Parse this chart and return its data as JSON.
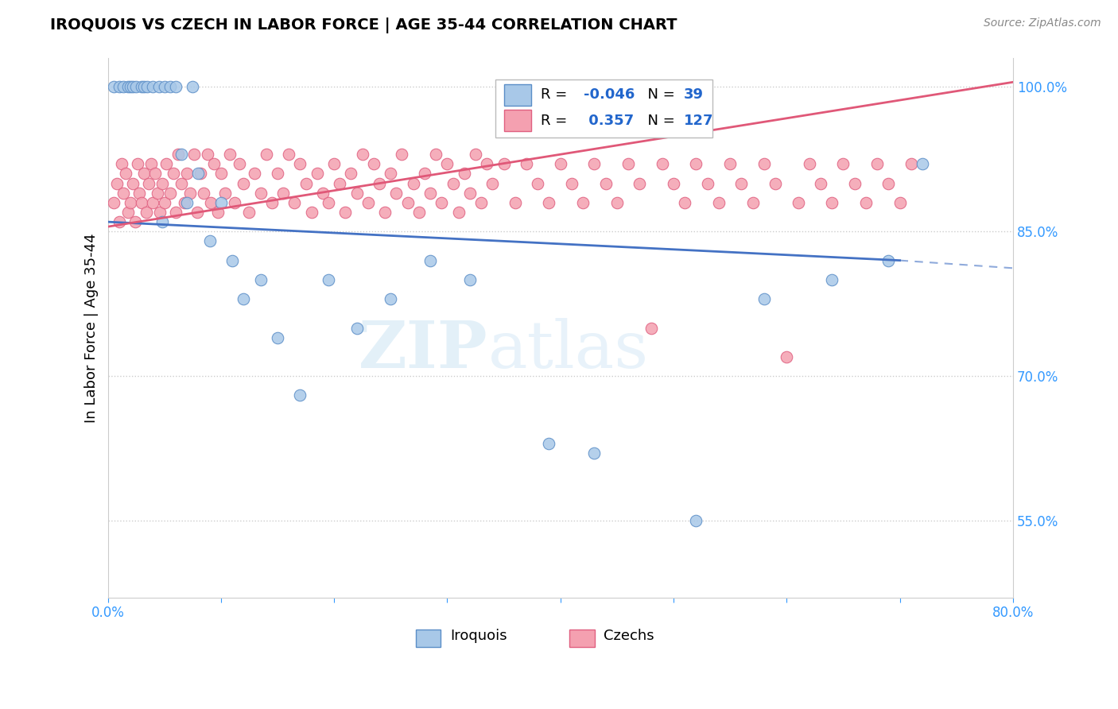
{
  "title": "IROQUOIS VS CZECH IN LABOR FORCE | AGE 35-44 CORRELATION CHART",
  "source": "Source: ZipAtlas.com",
  "ylabel": "In Labor Force | Age 35-44",
  "xlim": [
    0.0,
    0.8
  ],
  "ylim": [
    0.47,
    1.03
  ],
  "xtick_positions": [
    0.0,
    0.1,
    0.2,
    0.3,
    0.4,
    0.5,
    0.6,
    0.7,
    0.8
  ],
  "xticklabels": [
    "0.0%",
    "",
    "",
    "",
    "",
    "",
    "",
    "",
    "80.0%"
  ],
  "right_yticks": [
    0.55,
    0.7,
    0.85,
    1.0
  ],
  "right_yticklabels": [
    "55.0%",
    "70.0%",
    "85.0%",
    "100.0%"
  ],
  "blue_fill": "#a8c8e8",
  "blue_edge": "#5b8ec7",
  "pink_fill": "#f4a0b0",
  "pink_edge": "#e06080",
  "blue_line_color": "#4472c4",
  "pink_line_color": "#e05878",
  "watermark": "ZIPatlas",
  "R_iro": -0.046,
  "N_iro": 39,
  "R_cze": 0.357,
  "N_cze": 127,
  "iroquois_x": [
    0.005,
    0.01,
    0.014,
    0.018,
    0.02,
    0.022,
    0.025,
    0.03,
    0.032,
    0.035,
    0.04,
    0.045,
    0.048,
    0.05,
    0.055,
    0.06,
    0.065,
    0.07,
    0.075,
    0.08,
    0.09,
    0.1,
    0.11,
    0.12,
    0.135,
    0.15,
    0.17,
    0.195,
    0.22,
    0.25,
    0.285,
    0.32,
    0.39,
    0.43,
    0.52,
    0.58,
    0.64,
    0.69,
    0.72
  ],
  "iroquois_y": [
    1.0,
    1.0,
    1.0,
    1.0,
    1.0,
    1.0,
    1.0,
    1.0,
    1.0,
    1.0,
    1.0,
    1.0,
    0.86,
    1.0,
    1.0,
    1.0,
    0.93,
    0.88,
    1.0,
    0.91,
    0.84,
    0.88,
    0.82,
    0.78,
    0.8,
    0.74,
    0.68,
    0.8,
    0.75,
    0.78,
    0.82,
    0.8,
    0.63,
    0.62,
    0.55,
    0.78,
    0.8,
    0.82,
    0.92
  ],
  "czech_x": [
    0.005,
    0.008,
    0.01,
    0.012,
    0.014,
    0.016,
    0.018,
    0.02,
    0.022,
    0.024,
    0.026,
    0.028,
    0.03,
    0.032,
    0.034,
    0.036,
    0.038,
    0.04,
    0.042,
    0.044,
    0.046,
    0.048,
    0.05,
    0.052,
    0.055,
    0.058,
    0.06,
    0.062,
    0.065,
    0.068,
    0.07,
    0.073,
    0.076,
    0.079,
    0.082,
    0.085,
    0.088,
    0.091,
    0.094,
    0.097,
    0.1,
    0.104,
    0.108,
    0.112,
    0.116,
    0.12,
    0.125,
    0.13,
    0.135,
    0.14,
    0.145,
    0.15,
    0.155,
    0.16,
    0.165,
    0.17,
    0.175,
    0.18,
    0.185,
    0.19,
    0.195,
    0.2,
    0.205,
    0.21,
    0.215,
    0.22,
    0.225,
    0.23,
    0.235,
    0.24,
    0.245,
    0.25,
    0.255,
    0.26,
    0.265,
    0.27,
    0.275,
    0.28,
    0.285,
    0.29,
    0.295,
    0.3,
    0.305,
    0.31,
    0.315,
    0.32,
    0.325,
    0.33,
    0.335,
    0.34,
    0.35,
    0.36,
    0.37,
    0.38,
    0.39,
    0.4,
    0.41,
    0.42,
    0.43,
    0.44,
    0.45,
    0.46,
    0.47,
    0.48,
    0.49,
    0.5,
    0.51,
    0.52,
    0.53,
    0.54,
    0.55,
    0.56,
    0.57,
    0.58,
    0.59,
    0.6,
    0.61,
    0.62,
    0.63,
    0.64,
    0.65,
    0.66,
    0.67,
    0.68,
    0.69,
    0.7,
    0.71
  ],
  "czech_y": [
    0.88,
    0.9,
    0.86,
    0.92,
    0.89,
    0.91,
    0.87,
    0.88,
    0.9,
    0.86,
    0.92,
    0.89,
    0.88,
    0.91,
    0.87,
    0.9,
    0.92,
    0.88,
    0.91,
    0.89,
    0.87,
    0.9,
    0.88,
    0.92,
    0.89,
    0.91,
    0.87,
    0.93,
    0.9,
    0.88,
    0.91,
    0.89,
    0.93,
    0.87,
    0.91,
    0.89,
    0.93,
    0.88,
    0.92,
    0.87,
    0.91,
    0.89,
    0.93,
    0.88,
    0.92,
    0.9,
    0.87,
    0.91,
    0.89,
    0.93,
    0.88,
    0.91,
    0.89,
    0.93,
    0.88,
    0.92,
    0.9,
    0.87,
    0.91,
    0.89,
    0.88,
    0.92,
    0.9,
    0.87,
    0.91,
    0.89,
    0.93,
    0.88,
    0.92,
    0.9,
    0.87,
    0.91,
    0.89,
    0.93,
    0.88,
    0.9,
    0.87,
    0.91,
    0.89,
    0.93,
    0.88,
    0.92,
    0.9,
    0.87,
    0.91,
    0.89,
    0.93,
    0.88,
    0.92,
    0.9,
    0.92,
    0.88,
    0.92,
    0.9,
    0.88,
    0.92,
    0.9,
    0.88,
    0.92,
    0.9,
    0.88,
    0.92,
    0.9,
    0.75,
    0.92,
    0.9,
    0.88,
    0.92,
    0.9,
    0.88,
    0.92,
    0.9,
    0.88,
    0.92,
    0.9,
    0.72,
    0.88,
    0.92,
    0.9,
    0.88,
    0.92,
    0.9,
    0.88,
    0.92,
    0.9,
    0.88,
    0.92
  ]
}
